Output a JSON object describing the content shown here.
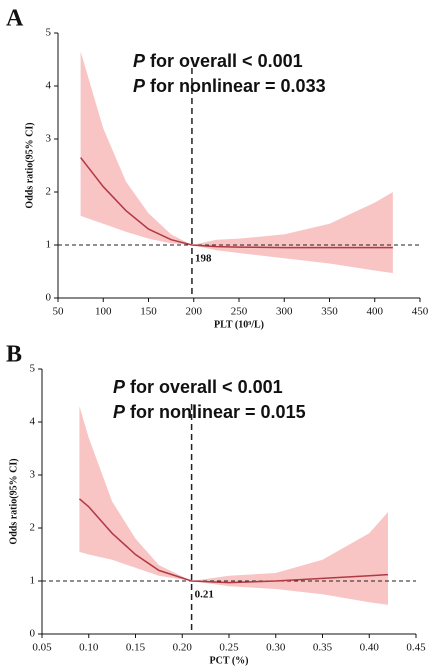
{
  "chart_data": [
    {
      "type": "line",
      "panel_label": "A",
      "annotations": [
        {
          "italic": "P",
          "text": "for overall < 0.001"
        },
        {
          "italic": "P",
          "text": "for nonlinear = 0.033"
        }
      ],
      "x_label": "PLT (10⁹/L)",
      "y_label": "Odds ratio(95% CI)",
      "x": [
        75,
        100,
        125,
        150,
        175,
        198,
        225,
        250,
        300,
        350,
        400,
        420
      ],
      "values": [
        2.65,
        2.1,
        1.65,
        1.3,
        1.1,
        1.0,
        0.97,
        0.96,
        0.95,
        0.95,
        0.95,
        0.95
      ],
      "lower": [
        1.55,
        1.4,
        1.25,
        1.12,
        1.03,
        1.0,
        0.9,
        0.85,
        0.75,
        0.65,
        0.52,
        0.47
      ],
      "upper": [
        4.65,
        3.2,
        2.2,
        1.6,
        1.2,
        1.0,
        1.1,
        1.12,
        1.2,
        1.4,
        1.8,
        2.0
      ],
      "color": "#b03a44",
      "band_color": "#f9c4c4",
      "reference_y": 1,
      "cutoff": 198,
      "xlim": [
        50,
        450
      ],
      "xticks": [
        50,
        100,
        150,
        200,
        250,
        300,
        350,
        400,
        450
      ],
      "ylim": [
        0,
        5
      ],
      "yticks": [
        0,
        1,
        2,
        3,
        4,
        5
      ]
    },
    {
      "type": "line",
      "panel_label": "B",
      "annotations": [
        {
          "italic": "P",
          "text": "for overall < 0.001"
        },
        {
          "italic": "P",
          "text": "for nonlinear = 0.015"
        }
      ],
      "x_label": "PCT (%)",
      "y_label": "Odds ratio(95% CI)",
      "x": [
        0.09,
        0.1,
        0.125,
        0.15,
        0.175,
        0.21,
        0.25,
        0.3,
        0.35,
        0.4,
        0.42
      ],
      "values": [
        2.55,
        2.4,
        1.9,
        1.5,
        1.2,
        1.0,
        0.97,
        1.0,
        1.05,
        1.1,
        1.12
      ],
      "lower": [
        1.55,
        1.5,
        1.4,
        1.25,
        1.1,
        1.0,
        0.9,
        0.85,
        0.75,
        0.6,
        0.55
      ],
      "upper": [
        4.3,
        3.7,
        2.5,
        1.8,
        1.3,
        1.0,
        1.1,
        1.15,
        1.4,
        1.9,
        2.3
      ],
      "color": "#b03a44",
      "band_color": "#f9c4c4",
      "reference_y": 1,
      "cutoff": 0.21,
      "xlim": [
        0.05,
        0.45
      ],
      "xticks": [
        0.05,
        {
          "value": 0.1,
          "label": "0.10"
        },
        0.15,
        {
          "value": 0.2,
          "label": "0.20"
        },
        0.25,
        {
          "value": 0.3,
          "label": "0.30"
        },
        0.35,
        {
          "value": 0.4,
          "label": "0.40"
        },
        0.45
      ],
      "ylim": [
        0,
        5
      ],
      "yticks": [
        0,
        1,
        2,
        3,
        4,
        5
      ]
    }
  ]
}
